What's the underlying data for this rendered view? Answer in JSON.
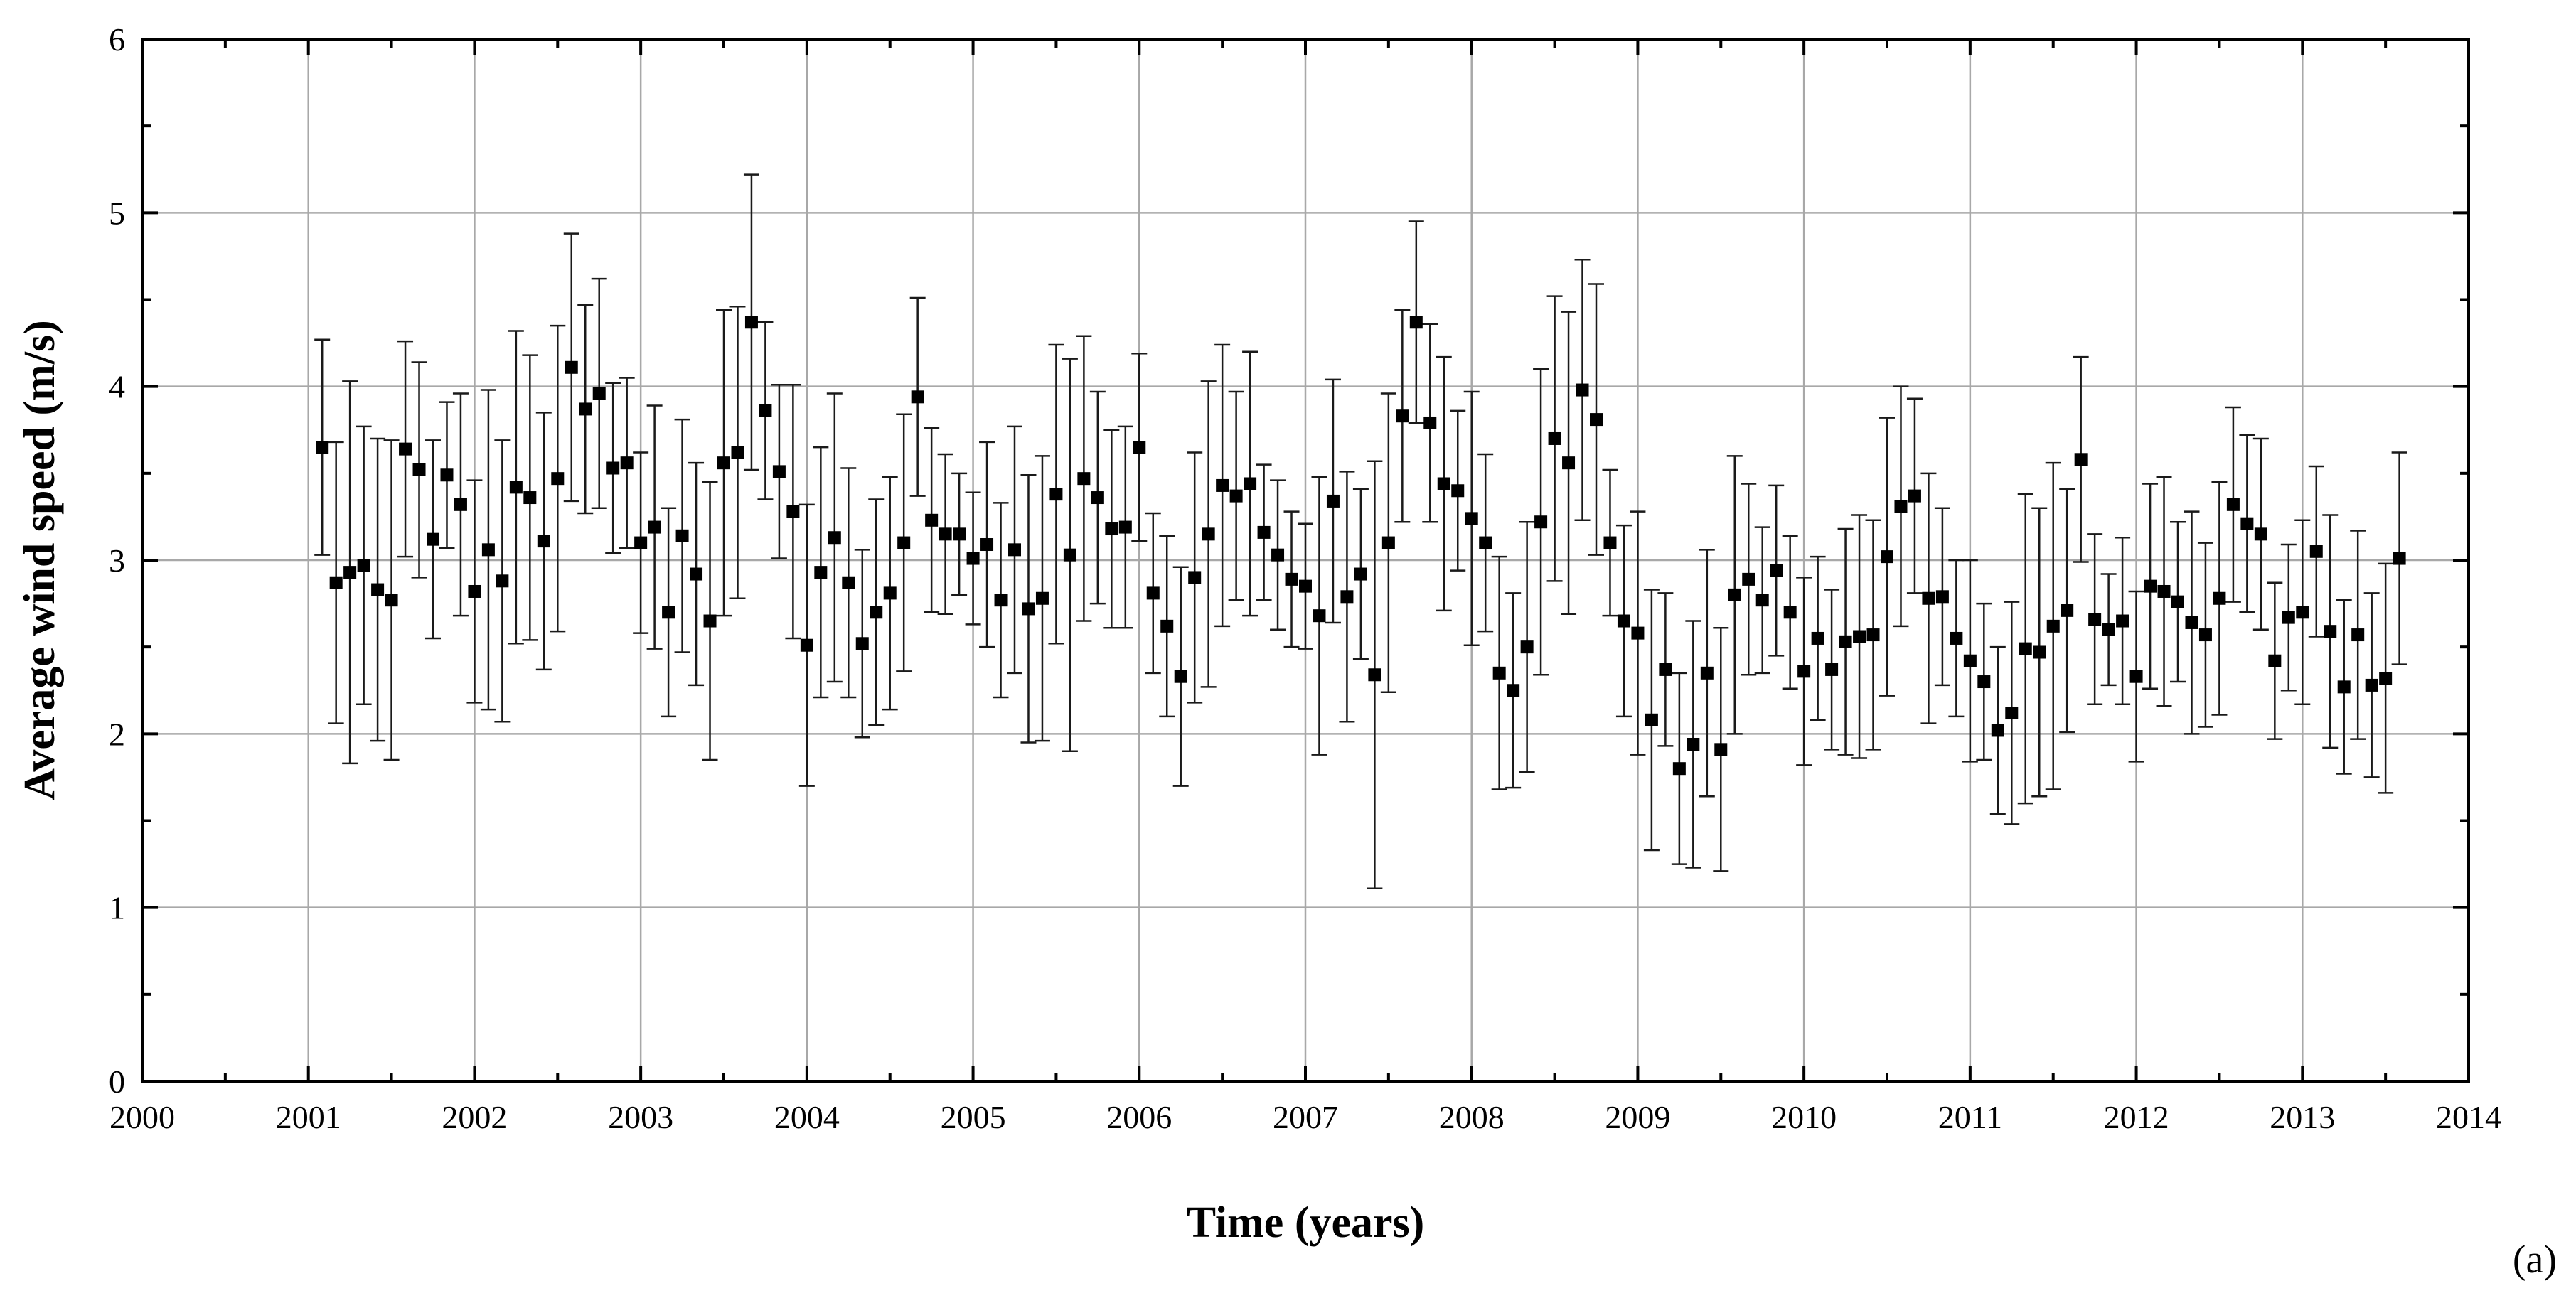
{
  "chart_data": {
    "type": "scatter",
    "xlabel": "Time (years)",
    "ylabel": "Average wind speed (m/s)",
    "panel_label": "(a)",
    "xlim": [
      2000,
      2014
    ],
    "ylim": [
      0,
      6
    ],
    "x_ticks": [
      "2000",
      "2001",
      "2002",
      "2003",
      "2004",
      "2005",
      "2006",
      "2007",
      "2008",
      "2009",
      "2010",
      "2011",
      "2012",
      "2013",
      "2014"
    ],
    "y_ticks": [
      "0",
      "1",
      "2",
      "3",
      "4",
      "5",
      "6"
    ],
    "grid": true,
    "marker": "square",
    "start_year": 2001,
    "start_month": 2,
    "values": [
      3.65,
      2.87,
      2.93,
      2.97,
      2.83,
      2.77,
      3.64,
      3.52,
      3.12,
      3.49,
      3.32,
      2.82,
      3.06,
      2.88,
      3.42,
      3.36,
      3.11,
      3.47,
      4.11,
      3.87,
      3.96,
      3.53,
      3.56,
      3.1,
      3.19,
      2.7,
      3.14,
      2.92,
      2.65,
      3.56,
      3.62,
      4.37,
      3.86,
      3.51,
      3.28,
      2.51,
      2.93,
      3.13,
      2.87,
      2.52,
      2.7,
      2.81,
      3.1,
      3.94,
      3.23,
      3.15,
      3.15,
      3.01,
      3.09,
      2.77,
      3.06,
      2.72,
      2.78,
      3.38,
      3.03,
      3.47,
      3.36,
      3.18,
      3.19,
      3.65,
      2.81,
      2.62,
      2.33,
      2.9,
      3.15,
      3.43,
      3.37,
      3.44,
      3.16,
      3.03,
      2.89,
      2.85,
      2.68,
      3.34,
      2.79,
      2.92,
      2.34,
      3.1,
      3.83,
      4.37,
      3.79,
      3.44,
      3.4,
      3.24,
      3.1,
      2.35,
      2.25,
      2.5,
      3.22,
      3.7,
      3.56,
      3.98,
      3.81,
      3.1,
      2.65,
      2.58,
      2.08,
      2.37,
      1.8,
      1.94,
      2.35,
      1.91,
      2.8,
      2.89,
      2.77,
      2.94,
      2.7,
      2.36,
      2.55,
      2.37,
      2.53,
      2.56,
      2.57,
      3.02,
      3.31,
      3.37,
      2.78,
      2.79,
      2.55,
      2.42,
      2.3,
      2.02,
      2.12,
      2.49,
      2.47,
      2.62,
      2.71,
      3.58,
      2.66,
      2.6,
      2.65,
      2.33,
      2.85,
      2.82,
      2.76,
      2.64,
      2.57,
      2.78,
      3.32,
      3.21,
      3.15,
      2.42,
      2.67,
      2.7,
      3.05,
      2.59,
      2.27,
      2.57,
      2.28,
      2.32,
      3.01
    ],
    "errors": [
      0.62,
      0.81,
      1.1,
      0.8,
      0.87,
      0.92,
      0.62,
      0.62,
      0.57,
      0.42,
      0.64,
      0.64,
      0.92,
      0.81,
      0.9,
      0.82,
      0.74,
      0.88,
      0.77,
      0.6,
      0.66,
      0.49,
      0.49,
      0.52,
      0.7,
      0.6,
      0.67,
      0.64,
      0.8,
      0.88,
      0.84,
      0.85,
      0.51,
      0.5,
      0.73,
      0.81,
      0.72,
      0.83,
      0.66,
      0.54,
      0.65,
      0.67,
      0.74,
      0.57,
      0.53,
      0.46,
      0.35,
      0.38,
      0.59,
      0.56,
      0.71,
      0.77,
      0.82,
      0.86,
      1.13,
      0.82,
      0.61,
      0.57,
      0.58,
      0.54,
      0.46,
      0.52,
      0.63,
      0.72,
      0.88,
      0.81,
      0.6,
      0.76,
      0.39,
      0.43,
      0.39,
      0.36,
      0.8,
      0.7,
      0.72,
      0.49,
      1.23,
      0.86,
      0.61,
      0.58,
      0.57,
      0.73,
      0.46,
      0.73,
      0.51,
      0.67,
      0.56,
      0.72,
      0.88,
      0.82,
      0.87,
      0.75,
      0.78,
      0.42,
      0.55,
      0.7,
      0.75,
      0.44,
      0.55,
      0.71,
      0.71,
      0.7,
      0.8,
      0.55,
      0.42,
      0.49,
      0.44,
      0.54,
      0.47,
      0.46,
      0.65,
      0.7,
      0.66,
      0.8,
      0.69,
      0.56,
      0.72,
      0.51,
      0.45,
      0.58,
      0.45,
      0.48,
      0.64,
      0.89,
      0.83,
      0.94,
      0.7,
      0.59,
      0.49,
      0.32,
      0.48,
      0.49,
      0.59,
      0.66,
      0.46,
      0.64,
      0.53,
      0.67,
      0.56,
      0.51,
      0.55,
      0.45,
      0.42,
      0.53,
      0.49,
      0.67,
      0.5,
      0.6,
      0.53,
      0.66,
      0.61
    ]
  }
}
